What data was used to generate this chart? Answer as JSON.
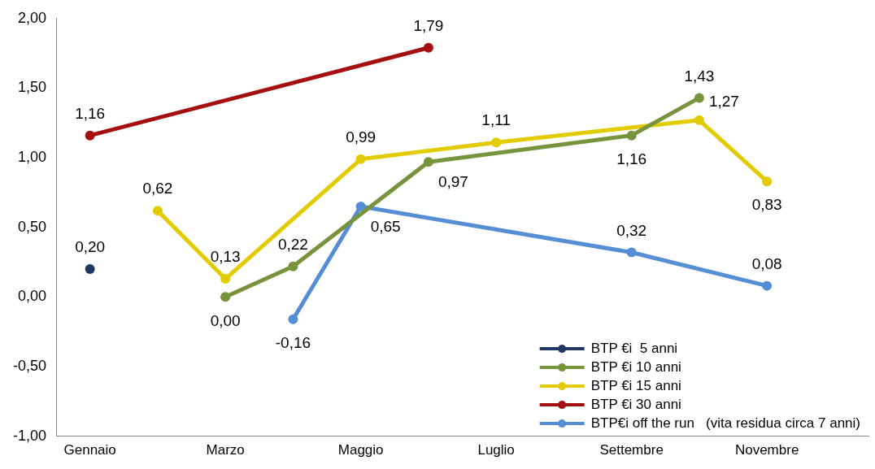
{
  "chart_data": {
    "type": "line",
    "categories": [
      "Gennaio",
      null,
      "Marzo",
      null,
      "Maggio",
      null,
      "Luglio",
      null,
      "Settembre",
      null,
      "Novembre",
      null
    ],
    "series": [
      {
        "name": "BTP €i  5 anni",
        "color": "#1f3864",
        "values": [
          0.2,
          null,
          null,
          null,
          null,
          null,
          null,
          null,
          null,
          null,
          null,
          null
        ],
        "value_labels": [
          "0,20",
          null,
          null,
          null,
          null,
          null,
          null,
          null,
          null,
          null,
          null,
          null
        ]
      },
      {
        "name": "BTP €i 10 anni",
        "color": "#77933c",
        "values": [
          null,
          null,
          0.0,
          0.22,
          null,
          0.97,
          null,
          null,
          1.16,
          1.43,
          null,
          null
        ],
        "value_labels": [
          null,
          null,
          "0,00",
          "0,22",
          null,
          "0,97",
          null,
          null,
          "1,16",
          "1,43",
          null,
          null
        ]
      },
      {
        "name": "BTP €i 15 anni",
        "color": "#e2cc00",
        "values": [
          null,
          0.62,
          0.13,
          null,
          0.99,
          null,
          1.11,
          null,
          null,
          1.27,
          0.83,
          null
        ],
        "value_labels": [
          null,
          "0,62",
          "0,13",
          null,
          "0,99",
          null,
          "1,11",
          null,
          null,
          "1,27",
          "0,83",
          null
        ]
      },
      {
        "name": "BTP €i 30 anni",
        "color": "#a50f0f",
        "values": [
          1.16,
          null,
          null,
          null,
          null,
          1.79,
          null,
          null,
          null,
          null,
          null,
          null
        ],
        "value_labels": [
          "1,16",
          null,
          null,
          null,
          null,
          "1,79",
          null,
          null,
          null,
          null,
          null,
          null
        ]
      },
      {
        "name": "BTP€i off the run   (vita residua circa 7 anni)",
        "color": "#558ed5",
        "values": [
          null,
          null,
          null,
          -0.16,
          0.65,
          null,
          null,
          null,
          0.32,
          null,
          0.08,
          null
        ],
        "value_labels": [
          null,
          null,
          null,
          "-0,16",
          "0,65",
          null,
          null,
          null,
          "0,32",
          null,
          "0,08",
          null
        ]
      }
    ],
    "ylim": [
      -1,
      2
    ],
    "yticks": [
      {
        "value": -1,
        "label": "-1,00"
      },
      {
        "value": -0.5,
        "label": "-0,50"
      },
      {
        "value": 0,
        "label": "0,00"
      },
      {
        "value": 0.5,
        "label": "0,50"
      },
      {
        "value": 1,
        "label": "1,00"
      },
      {
        "value": 1.5,
        "label": "1,50"
      },
      {
        "value": 2,
        "label": "2,00"
      }
    ],
    "grid": false,
    "legend": "bottom right",
    "marker": "circle",
    "line_style": "solid"
  }
}
